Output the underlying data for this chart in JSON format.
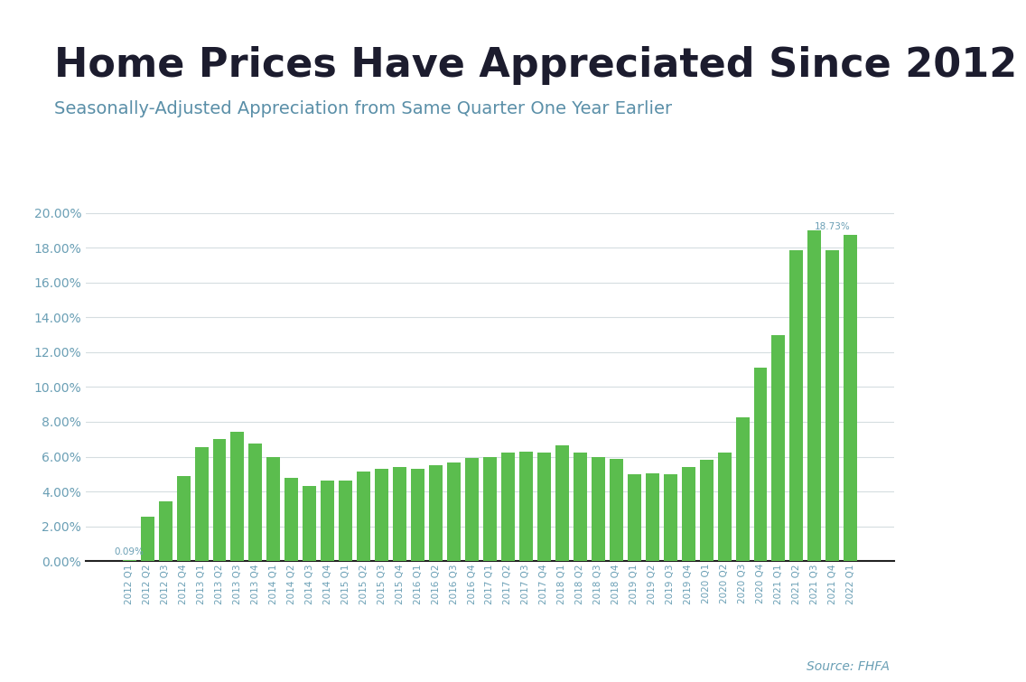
{
  "title": "Home Prices Have Appreciated Since 2012",
  "subtitle": "Seasonally-Adjusted Appreciation from Same Quarter One Year Earlier",
  "source": "Source: FHFA",
  "bar_color": "#5BBD4E",
  "background_color": "#ffffff",
  "categories": [
    "2012 Q1",
    "2012 Q2",
    "2012 Q3",
    "2012 Q4",
    "2013 Q1",
    "2013 Q2",
    "2013 Q3",
    "2013 Q4",
    "2014 Q1",
    "2014 Q2",
    "2014 Q3",
    "2014 Q4",
    "2015 Q1",
    "2015 Q2",
    "2015 Q3",
    "2015 Q4",
    "2016 Q1",
    "2016 Q2",
    "2016 Q3",
    "2016 Q4",
    "2017 Q1",
    "2017 Q2",
    "2017 Q3",
    "2017 Q4",
    "2018 Q1",
    "2018 Q2",
    "2018 Q3",
    "2018 Q4",
    "2019 Q1",
    "2019 Q2",
    "2019 Q3",
    "2019 Q4",
    "2020 Q1",
    "2020 Q2",
    "2020 Q3",
    "2020 Q4",
    "2021 Q1",
    "2021 Q2",
    "2021 Q3",
    "2021 Q4",
    "2022 Q1"
  ],
  "values": [
    0.09,
    2.55,
    3.45,
    4.9,
    6.55,
    7.0,
    7.45,
    6.75,
    6.0,
    4.8,
    4.3,
    4.65,
    4.65,
    5.15,
    5.3,
    5.4,
    5.3,
    5.5,
    5.65,
    5.9,
    5.95,
    6.25,
    6.3,
    6.25,
    6.65,
    6.25,
    6.0,
    5.85,
    5.0,
    5.05,
    5.0,
    5.4,
    5.8,
    6.25,
    8.25,
    11.1,
    13.0,
    17.85,
    19.0,
    17.85,
    18.73
  ],
  "last_annotation": "18.73%",
  "first_annotation": "0.09%",
  "ylim": [
    0,
    21
  ],
  "yticks": [
    0,
    2,
    4,
    6,
    8,
    10,
    12,
    14,
    16,
    18,
    20
  ],
  "title_fontsize": 32,
  "subtitle_fontsize": 14,
  "source_fontsize": 10,
  "tick_label_color": "#6a9fb5",
  "grid_color": "#d5dde0",
  "title_color": "#1c1c2e",
  "subtitle_color": "#5a8fa8",
  "top_stripe_color": "#4db8d4"
}
